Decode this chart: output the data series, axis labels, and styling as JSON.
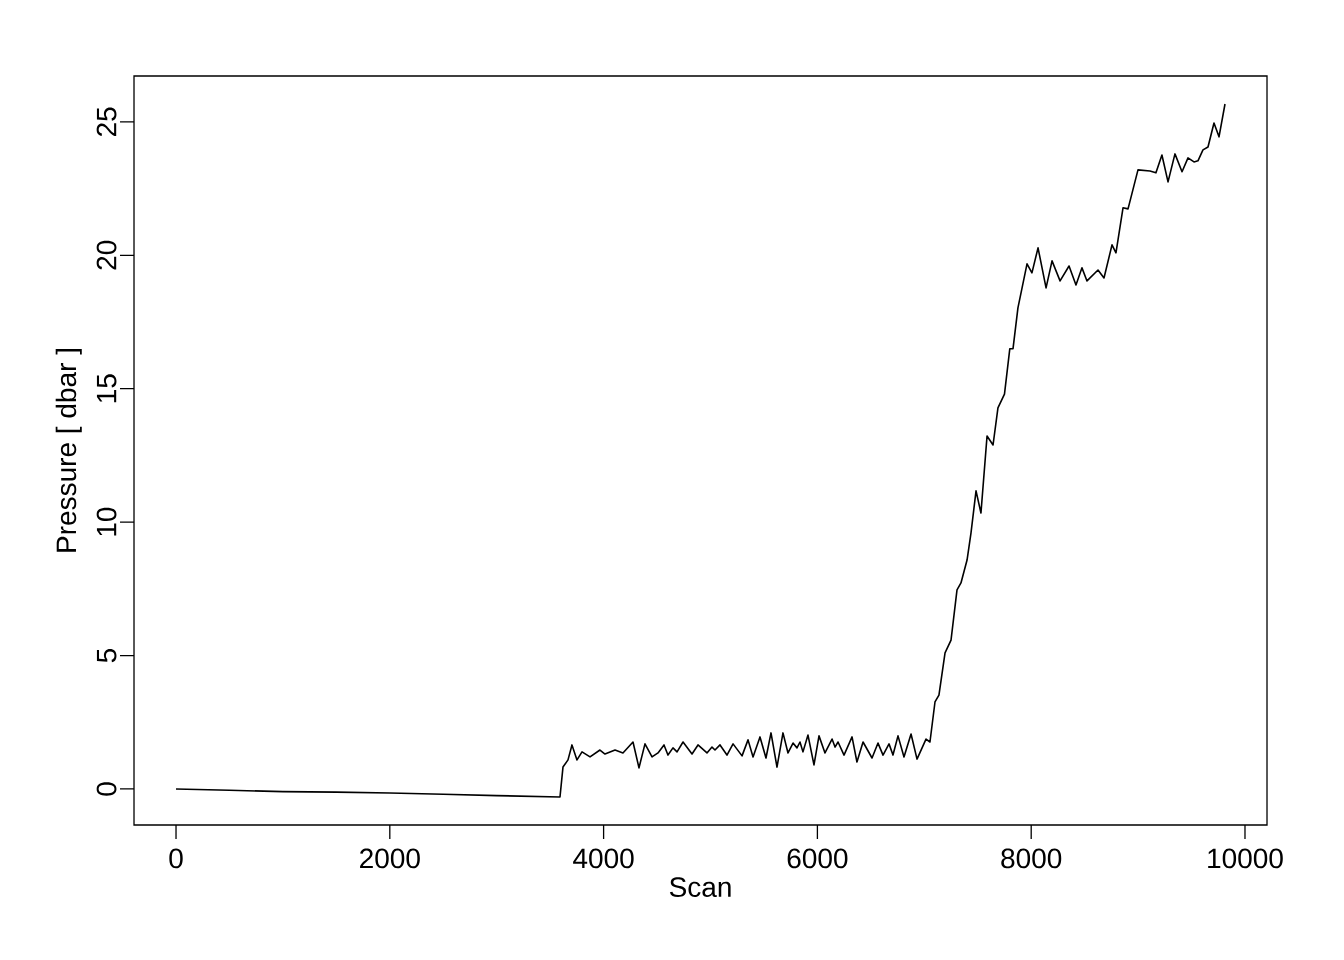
{
  "chart_data": {
    "type": "line",
    "xlabel": "Scan",
    "ylabel": "Pressure [ dbar ]",
    "xlim": [
      -393,
      10206
    ],
    "ylim": [
      -1.35,
      26.72
    ],
    "xticks": [
      0,
      2000,
      4000,
      6000,
      8000,
      10000
    ],
    "yticks": [
      0,
      5,
      10,
      15,
      20,
      25
    ],
    "series": [
      {
        "color": "#000000",
        "x": [
          0,
          500,
          1000,
          1500,
          2000,
          2500,
          3000,
          3592,
          3620,
          3667,
          3704,
          3751,
          3798,
          3873,
          3966,
          4013,
          4107,
          4181,
          4275,
          4331,
          4387,
          4453,
          4509,
          4565,
          4602,
          4649,
          4687,
          4743,
          4827,
          4883,
          4967,
          5014,
          5042,
          5089,
          5154,
          5211,
          5295,
          5351,
          5398,
          5463,
          5519,
          5566,
          5622,
          5678,
          5725,
          5772,
          5809,
          5837,
          5865,
          5912,
          5968,
          6015,
          6071,
          6137,
          6165,
          6193,
          6249,
          6324,
          6370,
          6427,
          6511,
          6567,
          6614,
          6670,
          6707,
          6754,
          6810,
          6876,
          6932,
          7016,
          7053,
          7100,
          7137,
          7194,
          7250,
          7306,
          7343,
          7400,
          7437,
          7484,
          7530,
          7587,
          7643,
          7689,
          7750,
          7800,
          7830,
          7876,
          7961,
          8007,
          8064,
          8139,
          8195,
          8270,
          8354,
          8419,
          8475,
          8522,
          8625,
          8681,
          8756,
          8793,
          8859,
          8906,
          8999,
          9111,
          9167,
          9223,
          9280,
          9345,
          9411,
          9467,
          9523,
          9560,
          9607,
          9654,
          9710,
          9757,
          9813
        ],
        "values": [
          0,
          -0.05,
          -0.1,
          -0.12,
          -0.15,
          -0.2,
          -0.25,
          -0.3,
          0.82,
          1.09,
          1.65,
          1.09,
          1.39,
          1.2,
          1.46,
          1.31,
          1.46,
          1.35,
          1.76,
          0.79,
          1.69,
          1.2,
          1.35,
          1.65,
          1.27,
          1.54,
          1.39,
          1.76,
          1.31,
          1.65,
          1.35,
          1.57,
          1.46,
          1.65,
          1.27,
          1.69,
          1.24,
          1.84,
          1.2,
          1.95,
          1.16,
          2.1,
          0.82,
          2.1,
          1.35,
          1.72,
          1.54,
          1.76,
          1.39,
          2.02,
          0.9,
          1.99,
          1.35,
          1.87,
          1.57,
          1.76,
          1.27,
          1.95,
          1.01,
          1.76,
          1.16,
          1.72,
          1.27,
          1.69,
          1.27,
          1.99,
          1.2,
          2.06,
          1.12,
          1.87,
          1.76,
          3.26,
          3.52,
          5.1,
          5.58,
          7.46,
          7.72,
          8.58,
          9.6,
          11.17,
          10.34,
          13.23,
          12.89,
          14.28,
          14.8,
          16.5,
          16.5,
          18.03,
          19.68,
          19.34,
          20.28,
          18.78,
          19.79,
          19.04,
          19.6,
          18.89,
          19.53,
          19.04,
          19.45,
          19.15,
          20.39,
          20.09,
          21.78,
          21.74,
          23.2,
          23.16,
          23.09,
          23.76,
          22.75,
          23.8,
          23.13,
          23.65,
          23.5,
          23.54,
          23.95,
          24.06,
          24.96,
          24.44,
          25.67
        ]
      }
    ]
  }
}
